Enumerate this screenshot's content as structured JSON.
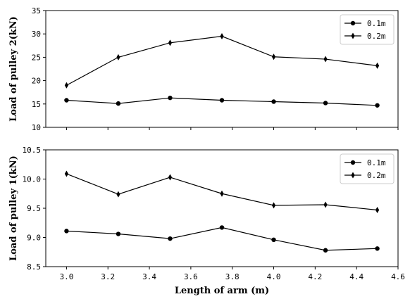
{
  "chart_data": [
    {
      "type": "line",
      "ylabel": "Load of pulley 2(kN)",
      "xlim": [
        2.9,
        4.6
      ],
      "ylim": [
        10,
        35
      ],
      "yticks": [
        10,
        15,
        20,
        25,
        30,
        35
      ],
      "ytick_labels": [
        "10",
        "15",
        "20",
        "25",
        "30",
        "35"
      ],
      "xticks": [
        3.0,
        3.2,
        3.4,
        3.6,
        3.8,
        4.0,
        4.2,
        4.4,
        4.6
      ],
      "show_xtick_labels": false,
      "legend_position": "top-right",
      "x": [
        3.0,
        3.25,
        3.5,
        3.75,
        4.0,
        4.25,
        4.5
      ],
      "series": [
        {
          "name": "0.1m",
          "marker": "circle",
          "values": [
            15.8,
            15.1,
            16.3,
            15.8,
            15.5,
            15.2,
            14.7
          ]
        },
        {
          "name": "0.2m",
          "marker": "diamond",
          "values": [
            19.0,
            25.0,
            28.1,
            29.5,
            25.1,
            24.6,
            23.2
          ]
        }
      ]
    },
    {
      "type": "line",
      "ylabel": "Load of pulley 1(kN)",
      "xlabel": "Length of arm (m)",
      "xlim": [
        2.9,
        4.6
      ],
      "ylim": [
        8.5,
        10.5
      ],
      "yticks": [
        8.5,
        9.0,
        9.5,
        10.0,
        10.5
      ],
      "ytick_labels": [
        "8.5",
        "9.0",
        "9.5",
        "10.0",
        "10.5"
      ],
      "xticks": [
        3.0,
        3.2,
        3.4,
        3.6,
        3.8,
        4.0,
        4.2,
        4.4,
        4.6
      ],
      "xtick_labels": [
        "3.0",
        "3.2",
        "3.4",
        "3.6",
        "3.8",
        "4.0",
        "4.2",
        "4.4",
        "4.6"
      ],
      "show_xtick_labels": true,
      "legend_position": "top-right",
      "x": [
        3.0,
        3.25,
        3.5,
        3.75,
        4.0,
        4.25,
        4.5
      ],
      "series": [
        {
          "name": "0.1m",
          "marker": "circle",
          "values": [
            9.11,
            9.06,
            8.98,
            9.17,
            8.96,
            8.78,
            8.81
          ]
        },
        {
          "name": "0.2m",
          "marker": "diamond",
          "values": [
            10.09,
            9.74,
            10.03,
            9.75,
            9.55,
            9.56,
            9.47
          ]
        }
      ]
    }
  ],
  "colors": {
    "line": "#000000",
    "background": "#ffffff"
  }
}
